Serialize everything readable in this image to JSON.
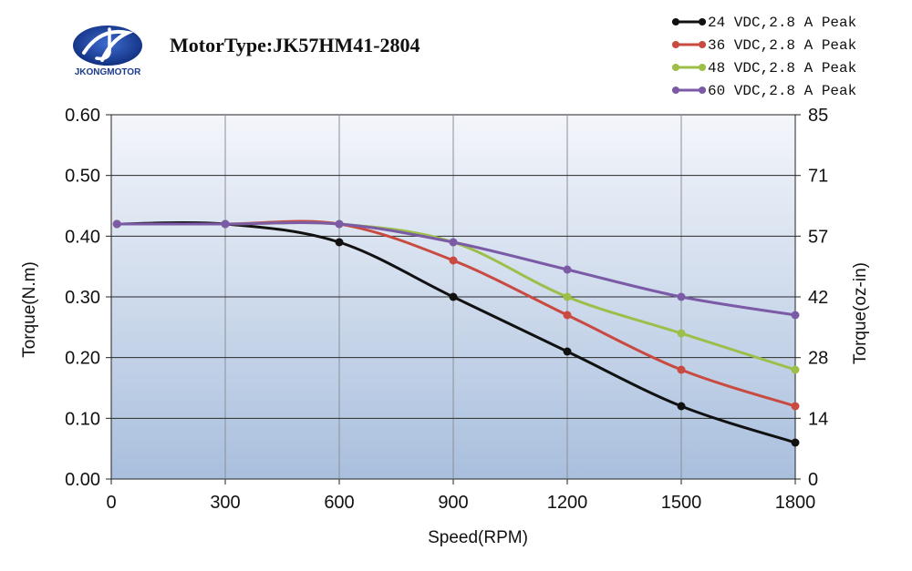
{
  "logo": {
    "brand": "JKONGMOTOR",
    "color": "#1a3a8c"
  },
  "title": "MotorType:JK57HM41-2804",
  "chart_data": {
    "type": "line",
    "xlabel": "Speed(RPM)",
    "ylabel": "Torque(N.m)",
    "y2label": "Torque(oz-in)",
    "xlim": [
      0,
      1800
    ],
    "ylim": [
      0,
      0.6
    ],
    "y2lim": [
      0,
      85
    ],
    "x_ticks": [
      0,
      300,
      600,
      900,
      1200,
      1500,
      1800
    ],
    "y_ticks": [
      0,
      0.1,
      0.2,
      0.3,
      0.4,
      0.5,
      0.6
    ],
    "y_tick_labels": [
      "0.00",
      "0.10",
      "0.20",
      "0.30",
      "0.40",
      "0.50",
      "0.60"
    ],
    "y2_ticks": [
      "0",
      "14",
      "28",
      "42",
      "57",
      "71",
      "85"
    ],
    "grid": true,
    "legend_position": "top-right",
    "series": [
      {
        "name": "24 VDC,2.8 A Peak",
        "color": "#111111",
        "x": [
          15,
          300,
          600,
          900,
          1200,
          1500,
          1800
        ],
        "y": [
          0.42,
          0.42,
          0.39,
          0.3,
          0.21,
          0.12,
          0.06
        ]
      },
      {
        "name": "36 VDC,2.8 A Peak",
        "color": "#c94a40",
        "x": [
          15,
          300,
          600,
          900,
          1200,
          1500,
          1800
        ],
        "y": [
          0.42,
          0.42,
          0.42,
          0.36,
          0.27,
          0.18,
          0.12
        ]
      },
      {
        "name": "48 VDC,2.8 A Peak",
        "color": "#9dbf4a",
        "x": [
          15,
          300,
          600,
          900,
          1200,
          1500,
          1800
        ],
        "y": [
          0.42,
          0.42,
          0.42,
          0.39,
          0.3,
          0.24,
          0.18
        ]
      },
      {
        "name": "60 VDC,2.8 A Peak",
        "color": "#7b5aa6",
        "x": [
          15,
          300,
          600,
          900,
          1200,
          1500,
          1800
        ],
        "y": [
          0.42,
          0.42,
          0.42,
          0.39,
          0.345,
          0.3,
          0.27
        ]
      }
    ]
  }
}
